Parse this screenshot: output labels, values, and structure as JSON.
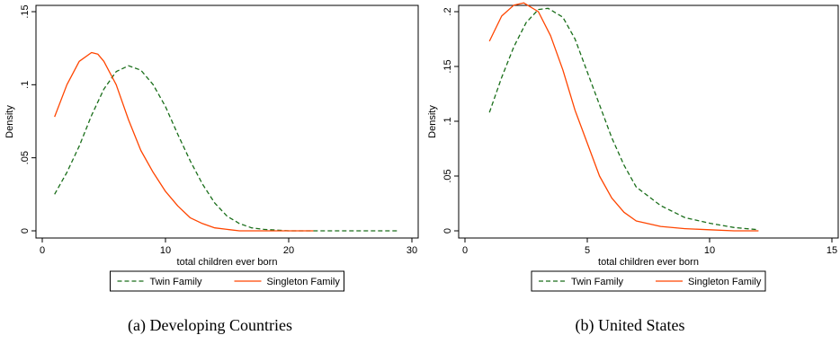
{
  "chart_data": [
    {
      "type": "line",
      "caption": "(a) Developing Countries",
      "xlabel": "total children ever born",
      "ylabel": "Density",
      "xlim": [
        0,
        30
      ],
      "ylim": [
        0,
        0.15
      ],
      "xticks": [
        0,
        10,
        20,
        30
      ],
      "yticks": [
        0,
        0.05,
        0.1,
        0.15
      ],
      "xtick_labels": [
        "0",
        "10",
        "20",
        "30"
      ],
      "ytick_labels": [
        "0",
        ".05",
        ".1",
        ".15"
      ],
      "grid": false,
      "legend_position": "bottom",
      "series": [
        {
          "name": "Twin Family",
          "color": "#1a6e1a",
          "dash": true,
          "x": [
            1,
            2,
            3,
            4,
            5,
            6,
            7,
            8,
            9,
            10,
            11,
            12,
            13,
            14,
            15,
            16,
            17,
            18,
            20,
            22,
            25,
            29
          ],
          "values": [
            0.025,
            0.04,
            0.058,
            0.079,
            0.097,
            0.109,
            0.113,
            0.11,
            0.1,
            0.085,
            0.066,
            0.048,
            0.032,
            0.019,
            0.01,
            0.005,
            0.002,
            0.001,
            0.0,
            0.0,
            0.0,
            0.0
          ]
        },
        {
          "name": "Singleton Family",
          "color": "#ff4500",
          "dash": false,
          "x": [
            1,
            2,
            3,
            4,
            4.5,
            5,
            6,
            7,
            8,
            9,
            10,
            11,
            12,
            13,
            14,
            15,
            16,
            17,
            18,
            20,
            22
          ],
          "values": [
            0.078,
            0.1,
            0.116,
            0.122,
            0.121,
            0.116,
            0.1,
            0.076,
            0.055,
            0.04,
            0.027,
            0.017,
            0.009,
            0.005,
            0.002,
            0.001,
            0.0,
            0.0,
            0.0,
            0.0,
            0.0
          ]
        }
      ]
    },
    {
      "type": "line",
      "caption": "(b) United States",
      "xlabel": "total children ever born",
      "ylabel": "Density",
      "xlim": [
        0,
        15
      ],
      "ylim": [
        0,
        0.2
      ],
      "xticks": [
        0,
        5,
        10,
        15
      ],
      "yticks": [
        0,
        0.05,
        0.1,
        0.15,
        0.2
      ],
      "xtick_labels": [
        "0",
        "5",
        "10",
        "15"
      ],
      "ytick_labels": [
        "0",
        ".05",
        ".1",
        ".15",
        ".2"
      ],
      "grid": false,
      "legend_position": "bottom",
      "series": [
        {
          "name": "Twin Family",
          "color": "#1a6e1a",
          "dash": true,
          "x": [
            1,
            1.5,
            2,
            2.5,
            3,
            3.4,
            4,
            4.5,
            5,
            5.5,
            6,
            6.5,
            7,
            8,
            9,
            10,
            11,
            12
          ],
          "values": [
            0.108,
            0.14,
            0.168,
            0.19,
            0.202,
            0.203,
            0.195,
            0.175,
            0.145,
            0.115,
            0.085,
            0.06,
            0.04,
            0.023,
            0.012,
            0.007,
            0.003,
            0.001
          ]
        },
        {
          "name": "Singleton Family",
          "color": "#ff4500",
          "dash": false,
          "x": [
            1,
            1.5,
            2,
            2.4,
            3,
            3.5,
            4,
            4.5,
            5,
            5.5,
            6,
            6.5,
            7,
            8,
            9,
            10,
            11,
            12
          ],
          "values": [
            0.173,
            0.196,
            0.206,
            0.208,
            0.2,
            0.178,
            0.147,
            0.11,
            0.08,
            0.05,
            0.03,
            0.017,
            0.009,
            0.004,
            0.002,
            0.001,
            0.0,
            0.0
          ]
        }
      ]
    }
  ]
}
